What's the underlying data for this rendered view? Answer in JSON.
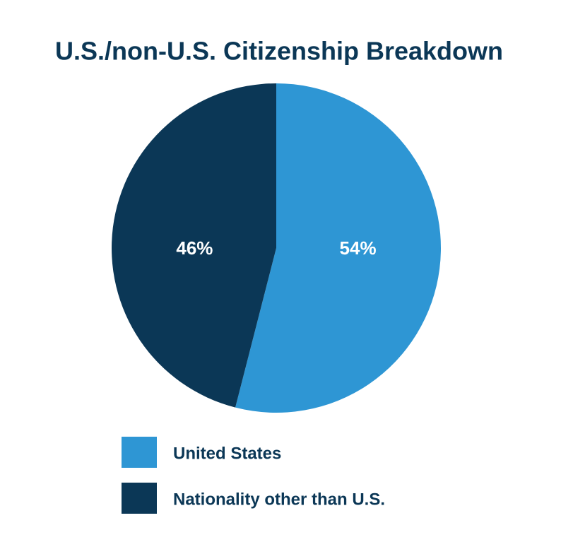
{
  "chart_data": {
    "type": "pie",
    "title": "U.S./non-U.S. Citizenship Breakdown",
    "categories": [
      "United States",
      "Nationality other than U.S."
    ],
    "values": [
      54,
      46
    ],
    "value_labels": [
      "54%",
      "46%"
    ],
    "colors": [
      "#2e96d4",
      "#0b3756"
    ]
  }
}
